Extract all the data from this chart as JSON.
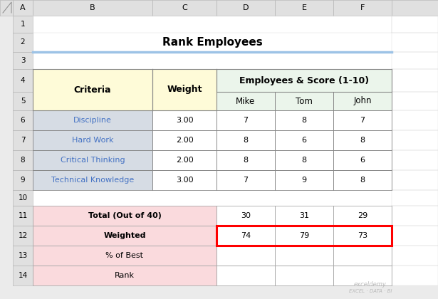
{
  "title": "Rank Employees",
  "merged_header": "Employees & Score (1-10)",
  "criteria": [
    "Discipline",
    "Hard Work",
    "Critical Thinking",
    "Technical Knowledge"
  ],
  "weights": [
    "3.00",
    "2.00",
    "2.00",
    "3.00"
  ],
  "scores_mike": [
    "7",
    "8",
    "8",
    "7"
  ],
  "scores_tom": [
    "8",
    "6",
    "8",
    "9"
  ],
  "scores_john": [
    "7",
    "8",
    "6",
    "8"
  ],
  "summary_labels": [
    "Total (Out of 40)",
    "Weighted",
    "% of Best",
    "Rank"
  ],
  "summary_mike": [
    "30",
    "74",
    "",
    ""
  ],
  "summary_tom": [
    "31",
    "79",
    "",
    ""
  ],
  "summary_john": [
    "29",
    "73",
    "",
    ""
  ],
  "header_criteria_bg": "#FEFBD8",
  "header_employees_bg": "#EBF5EB",
  "criteria_cell_bg": "#D6DCE4",
  "criteria_text_color": "#4472C4",
  "summary_label_bg": "#FADADD",
  "red_border_color": "#FF0000",
  "excel_header_bg": "#E0E0E0",
  "excel_bg": "#EBEBEB",
  "title_underline_color": "#9DC3E6",
  "border_color": "#AAAAAA",
  "col_letters": [
    "",
    "A",
    "B",
    "C",
    "D",
    "E",
    "F",
    ""
  ],
  "row_numbers": [
    "1",
    "2",
    "3",
    "4",
    "5",
    "6",
    "7",
    "8",
    "9",
    "10",
    "11",
    "12",
    "13",
    "14"
  ]
}
